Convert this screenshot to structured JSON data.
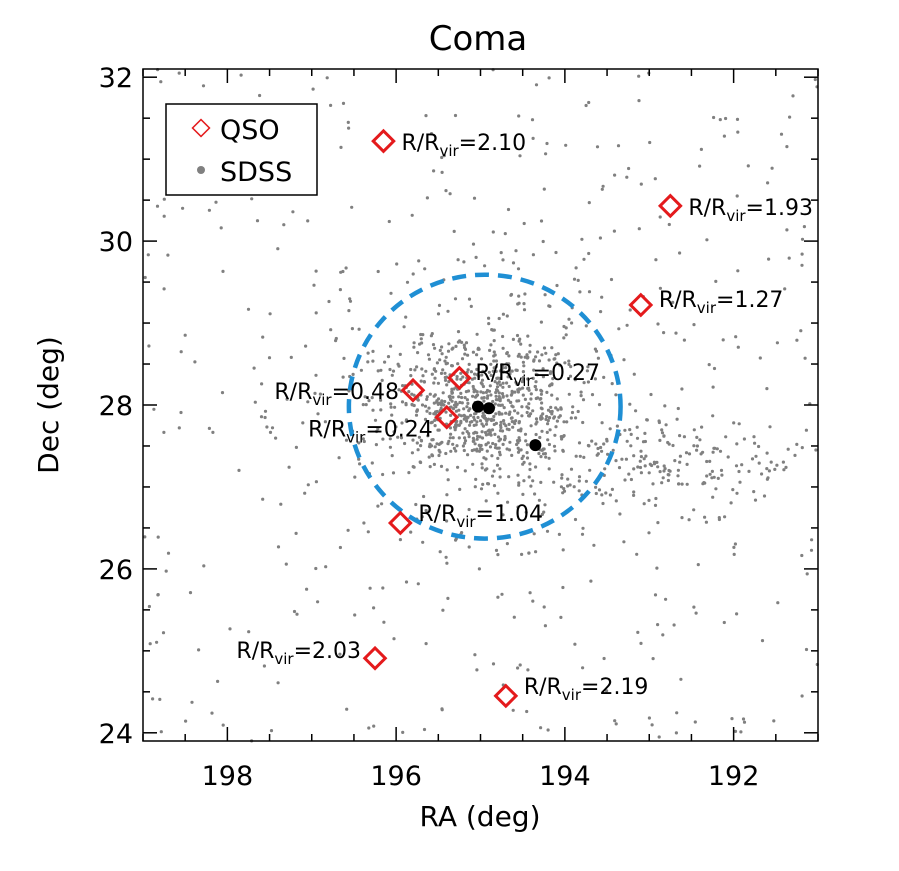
{
  "chart_data": {
    "type": "scatter",
    "title": "Coma",
    "xlabel": "RA (deg)",
    "ylabel": "Dec (deg)",
    "xlim": [
      199.0,
      191.0
    ],
    "ylim": [
      23.9,
      32.1
    ],
    "x_reversed": true,
    "xticks": [
      198,
      196,
      194,
      192
    ],
    "yticks": [
      24,
      26,
      28,
      30,
      32
    ],
    "grid": false,
    "legend_position": "top-left",
    "legend": [
      {
        "name": "QSO",
        "marker": "open-diamond",
        "color": "#e41a1c"
      },
      {
        "name": "SDSS",
        "marker": "filled-circle",
        "color": "#808080"
      }
    ],
    "qso": [
      {
        "ra": 196.15,
        "dec": 31.22,
        "prefix": "R/R",
        "sub": "vir",
        "value": "=2.10"
      },
      {
        "ra": 192.75,
        "dec": 30.43,
        "prefix": "R/R",
        "sub": "vir",
        "value": "=1.93"
      },
      {
        "ra": 193.1,
        "dec": 29.22,
        "prefix": "R/R",
        "sub": "vir",
        "value": "=1.27"
      },
      {
        "ra": 195.25,
        "dec": 28.33,
        "prefix": "R/R",
        "sub": "vir",
        "value": "=0.27"
      },
      {
        "ra": 195.8,
        "dec": 28.18,
        "prefix": "R/R",
        "sub": "vir",
        "value": "=0.48"
      },
      {
        "ra": 195.4,
        "dec": 27.85,
        "prefix": "R/R",
        "sub": "vir",
        "value": "=0.24"
      },
      {
        "ra": 195.95,
        "dec": 26.56,
        "prefix": "R/R",
        "sub": "vir",
        "value": "=1.04"
      },
      {
        "ra": 196.25,
        "dec": 24.91,
        "prefix": "R/R",
        "sub": "vir",
        "value": "=2.03"
      },
      {
        "ra": 194.7,
        "dec": 24.45,
        "prefix": "R/R",
        "sub": "vir",
        "value": "=2.19"
      }
    ],
    "bcg": [
      {
        "ra": 195.03,
        "dec": 27.98
      },
      {
        "ra": 194.9,
        "dec": 27.96
      },
      {
        "ra": 194.35,
        "dec": 27.51
      }
    ],
    "virial_circle": {
      "ra": 194.95,
      "dec": 27.98,
      "radius_deg": 1.61,
      "color": "#1f8fd4",
      "style": "dashed"
    },
    "sdss_cluster_center": {
      "ra": 194.95,
      "dec": 27.98
    },
    "sdss_color": "#808080",
    "sdss_point_count_approx": 1500
  }
}
